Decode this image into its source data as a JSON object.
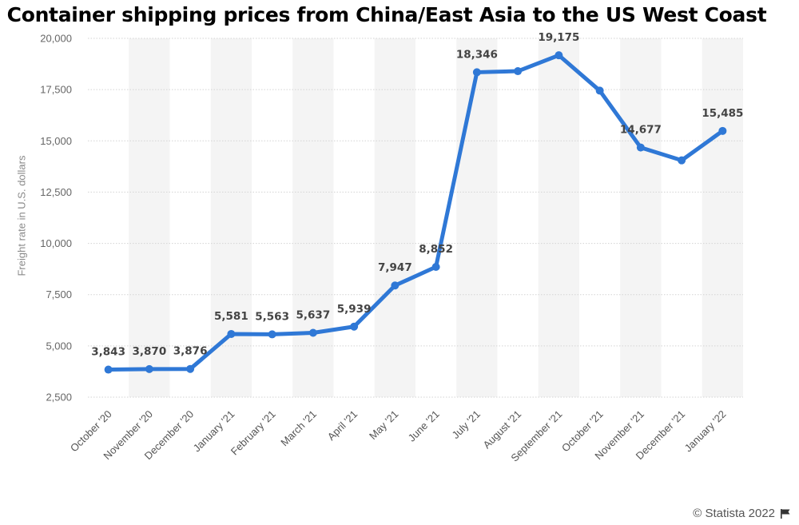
{
  "chart_data": {
    "type": "line",
    "title": "Container shipping prices from China/East Asia to the US West Coast",
    "ylabel": "Freight rate in U.S. dollars",
    "xlabel": "",
    "ylim": [
      2500,
      20000
    ],
    "yticks": [
      2500,
      5000,
      7500,
      10000,
      12500,
      15000,
      17500,
      20000
    ],
    "ytick_labels": [
      "2,500",
      "5,000",
      "7,500",
      "10,000",
      "12,500",
      "15,000",
      "17,500",
      "20,000"
    ],
    "grid": true,
    "legend": "none",
    "categories": [
      "October '20",
      "November '20",
      "December '20",
      "January '21",
      "February '21",
      "March '21",
      "April '21",
      "May '21",
      "June '21",
      "July '21",
      "August '21",
      "September '21",
      "October '21",
      "November '21",
      "December '21",
      "January '22"
    ],
    "series": [
      {
        "values": [
          3843,
          3870,
          3876,
          5581,
          5563,
          5637,
          5939,
          7947,
          8852,
          18346,
          18400,
          19175,
          17450,
          14677,
          14050,
          15485
        ],
        "labels": [
          "3,843",
          "3,870",
          "3,876",
          "5,581",
          "5,563",
          "5,637",
          "5,939",
          "7,947",
          "8,852",
          "18,346",
          "",
          "19,175",
          "",
          "14,677",
          "",
          "15,485"
        ],
        "color": "#2f78d6"
      }
    ]
  },
  "credit": "© Statista 2022",
  "icons": {
    "credit_icon": "flag-icon"
  }
}
